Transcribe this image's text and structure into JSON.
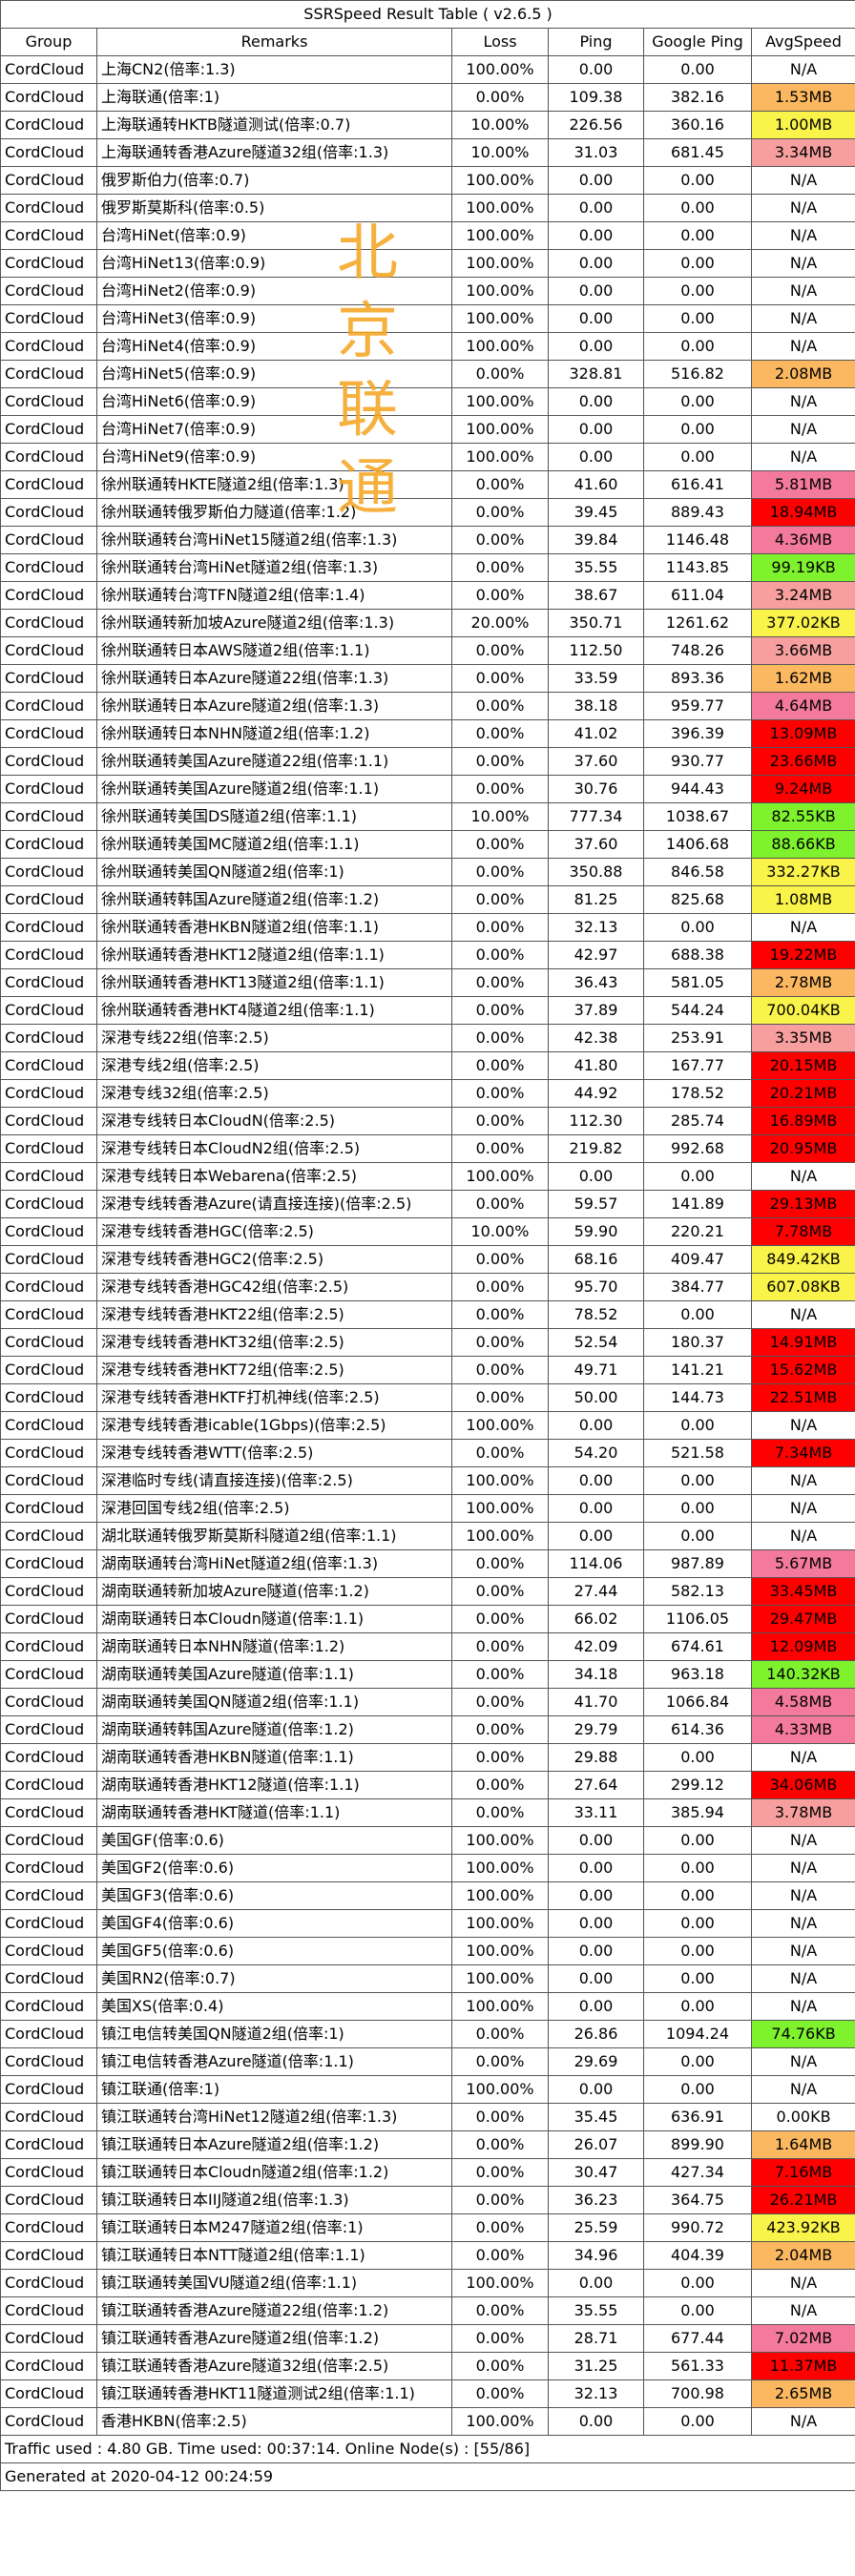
{
  "title": "SSRSpeed Result Table ( v2.6.5 )",
  "headers": [
    "Group",
    "Remarks",
    "Loss",
    "Ping",
    "Google Ping",
    "AvgSpeed"
  ],
  "watermark": [
    "北",
    "京",
    "联",
    "通"
  ],
  "speed_colors": {
    "red": "#ff0000",
    "pink": "#f47a9c",
    "salmon": "#f79f9f",
    "orange": "#fbb860",
    "yellow": "#f9f34a",
    "lime": "#7ef22c",
    "none": ""
  },
  "rows": [
    {
      "group": "CordCloud",
      "remark": "上海CN2(倍率:1.3)",
      "loss": "100.00%",
      "ping": "0.00",
      "gping": "0.00",
      "speed": "N/A",
      "color": "none"
    },
    {
      "group": "CordCloud",
      "remark": "上海联通(倍率:1)",
      "loss": "0.00%",
      "ping": "109.38",
      "gping": "382.16",
      "speed": "1.53MB",
      "color": "orange"
    },
    {
      "group": "CordCloud",
      "remark": "上海联通转HKTB隧道测试(倍率:0.7)",
      "loss": "10.00%",
      "ping": "226.56",
      "gping": "360.16",
      "speed": "1.00MB",
      "color": "yellow"
    },
    {
      "group": "CordCloud",
      "remark": "上海联通转香港Azure隧道32组(倍率:1.3)",
      "loss": "10.00%",
      "ping": "31.03",
      "gping": "681.45",
      "speed": "3.34MB",
      "color": "salmon"
    },
    {
      "group": "CordCloud",
      "remark": "俄罗斯伯力(倍率:0.7)",
      "loss": "100.00%",
      "ping": "0.00",
      "gping": "0.00",
      "speed": "N/A",
      "color": "none"
    },
    {
      "group": "CordCloud",
      "remark": "俄罗斯莫斯科(倍率:0.5)",
      "loss": "100.00%",
      "ping": "0.00",
      "gping": "0.00",
      "speed": "N/A",
      "color": "none"
    },
    {
      "group": "CordCloud",
      "remark": "台湾HiNet(倍率:0.9)",
      "loss": "100.00%",
      "ping": "0.00",
      "gping": "0.00",
      "speed": "N/A",
      "color": "none"
    },
    {
      "group": "CordCloud",
      "remark": "台湾HiNet13(倍率:0.9)",
      "loss": "100.00%",
      "ping": "0.00",
      "gping": "0.00",
      "speed": "N/A",
      "color": "none"
    },
    {
      "group": "CordCloud",
      "remark": "台湾HiNet2(倍率:0.9)",
      "loss": "100.00%",
      "ping": "0.00",
      "gping": "0.00",
      "speed": "N/A",
      "color": "none"
    },
    {
      "group": "CordCloud",
      "remark": "台湾HiNet3(倍率:0.9)",
      "loss": "100.00%",
      "ping": "0.00",
      "gping": "0.00",
      "speed": "N/A",
      "color": "none"
    },
    {
      "group": "CordCloud",
      "remark": "台湾HiNet4(倍率:0.9)",
      "loss": "100.00%",
      "ping": "0.00",
      "gping": "0.00",
      "speed": "N/A",
      "color": "none"
    },
    {
      "group": "CordCloud",
      "remark": "台湾HiNet5(倍率:0.9)",
      "loss": "0.00%",
      "ping": "328.81",
      "gping": "516.82",
      "speed": "2.08MB",
      "color": "orange"
    },
    {
      "group": "CordCloud",
      "remark": "台湾HiNet6(倍率:0.9)",
      "loss": "100.00%",
      "ping": "0.00",
      "gping": "0.00",
      "speed": "N/A",
      "color": "none"
    },
    {
      "group": "CordCloud",
      "remark": "台湾HiNet7(倍率:0.9)",
      "loss": "100.00%",
      "ping": "0.00",
      "gping": "0.00",
      "speed": "N/A",
      "color": "none"
    },
    {
      "group": "CordCloud",
      "remark": "台湾HiNet9(倍率:0.9)",
      "loss": "100.00%",
      "ping": "0.00",
      "gping": "0.00",
      "speed": "N/A",
      "color": "none"
    },
    {
      "group": "CordCloud",
      "remark": "徐州联通转HKTE隧道2组(倍率:1.3)",
      "loss": "0.00%",
      "ping": "41.60",
      "gping": "616.41",
      "speed": "5.81MB",
      "color": "pink"
    },
    {
      "group": "CordCloud",
      "remark": "徐州联通转俄罗斯伯力隧道(倍率:1.2)",
      "loss": "0.00%",
      "ping": "39.45",
      "gping": "889.43",
      "speed": "18.94MB",
      "color": "red"
    },
    {
      "group": "CordCloud",
      "remark": "徐州联通转台湾HiNet15隧道2组(倍率:1.3)",
      "loss": "0.00%",
      "ping": "39.84",
      "gping": "1146.48",
      "speed": "4.36MB",
      "color": "pink"
    },
    {
      "group": "CordCloud",
      "remark": "徐州联通转台湾HiNet隧道2组(倍率:1.3)",
      "loss": "0.00%",
      "ping": "35.55",
      "gping": "1143.85",
      "speed": "99.19KB",
      "color": "lime"
    },
    {
      "group": "CordCloud",
      "remark": "徐州联通转台湾TFN隧道2组(倍率:1.4)",
      "loss": "0.00%",
      "ping": "38.67",
      "gping": "611.04",
      "speed": "3.24MB",
      "color": "salmon"
    },
    {
      "group": "CordCloud",
      "remark": "徐州联通转新加坡Azure隧道2组(倍率:1.3)",
      "loss": "20.00%",
      "ping": "350.71",
      "gping": "1261.62",
      "speed": "377.02KB",
      "color": "yellow"
    },
    {
      "group": "CordCloud",
      "remark": "徐州联通转日本AWS隧道2组(倍率:1.1)",
      "loss": "0.00%",
      "ping": "112.50",
      "gping": "748.26",
      "speed": "3.66MB",
      "color": "salmon"
    },
    {
      "group": "CordCloud",
      "remark": "徐州联通转日本Azure隧道22组(倍率:1.3)",
      "loss": "0.00%",
      "ping": "33.59",
      "gping": "893.36",
      "speed": "1.62MB",
      "color": "orange"
    },
    {
      "group": "CordCloud",
      "remark": "徐州联通转日本Azure隧道2组(倍率:1.3)",
      "loss": "0.00%",
      "ping": "38.18",
      "gping": "959.77",
      "speed": "4.64MB",
      "color": "pink"
    },
    {
      "group": "CordCloud",
      "remark": "徐州联通转日本NHN隧道2组(倍率:1.2)",
      "loss": "0.00%",
      "ping": "41.02",
      "gping": "396.39",
      "speed": "13.09MB",
      "color": "red"
    },
    {
      "group": "CordCloud",
      "remark": "徐州联通转美国Azure隧道22组(倍率:1.1)",
      "loss": "0.00%",
      "ping": "37.60",
      "gping": "930.77",
      "speed": "23.66MB",
      "color": "red"
    },
    {
      "group": "CordCloud",
      "remark": "徐州联通转美国Azure隧道2组(倍率:1.1)",
      "loss": "0.00%",
      "ping": "30.76",
      "gping": "944.43",
      "speed": "9.24MB",
      "color": "red"
    },
    {
      "group": "CordCloud",
      "remark": "徐州联通转美国DS隧道2组(倍率:1.1)",
      "loss": "10.00%",
      "ping": "777.34",
      "gping": "1038.67",
      "speed": "82.55KB",
      "color": "lime"
    },
    {
      "group": "CordCloud",
      "remark": "徐州联通转美国MC隧道2组(倍率:1.1)",
      "loss": "0.00%",
      "ping": "37.60",
      "gping": "1406.68",
      "speed": "88.66KB",
      "color": "lime"
    },
    {
      "group": "CordCloud",
      "remark": "徐州联通转美国QN隧道2组(倍率:1)",
      "loss": "0.00%",
      "ping": "350.88",
      "gping": "846.58",
      "speed": "332.27KB",
      "color": "yellow"
    },
    {
      "group": "CordCloud",
      "remark": "徐州联通转韩国Azure隧道2组(倍率:1.2)",
      "loss": "0.00%",
      "ping": "81.25",
      "gping": "825.68",
      "speed": "1.08MB",
      "color": "yellow"
    },
    {
      "group": "CordCloud",
      "remark": "徐州联通转香港HKBN隧道2组(倍率:1.1)",
      "loss": "0.00%",
      "ping": "32.13",
      "gping": "0.00",
      "speed": "N/A",
      "color": "none"
    },
    {
      "group": "CordCloud",
      "remark": "徐州联通转香港HKT12隧道2组(倍率:1.1)",
      "loss": "0.00%",
      "ping": "42.97",
      "gping": "688.38",
      "speed": "19.22MB",
      "color": "red"
    },
    {
      "group": "CordCloud",
      "remark": "徐州联通转香港HKT13隧道2组(倍率:1.1)",
      "loss": "0.00%",
      "ping": "36.43",
      "gping": "581.05",
      "speed": "2.78MB",
      "color": "orange"
    },
    {
      "group": "CordCloud",
      "remark": "徐州联通转香港HKT4隧道2组(倍率:1.1)",
      "loss": "0.00%",
      "ping": "37.89",
      "gping": "544.24",
      "speed": "700.04KB",
      "color": "yellow"
    },
    {
      "group": "CordCloud",
      "remark": "深港专线22组(倍率:2.5)",
      "loss": "0.00%",
      "ping": "42.38",
      "gping": "253.91",
      "speed": "3.35MB",
      "color": "salmon"
    },
    {
      "group": "CordCloud",
      "remark": "深港专线2组(倍率:2.5)",
      "loss": "0.00%",
      "ping": "41.80",
      "gping": "167.77",
      "speed": "20.15MB",
      "color": "red"
    },
    {
      "group": "CordCloud",
      "remark": "深港专线32组(倍率:2.5)",
      "loss": "0.00%",
      "ping": "44.92",
      "gping": "178.52",
      "speed": "20.21MB",
      "color": "red"
    },
    {
      "group": "CordCloud",
      "remark": "深港专线转日本CloudN(倍率:2.5)",
      "loss": "0.00%",
      "ping": "112.30",
      "gping": "285.74",
      "speed": "16.89MB",
      "color": "red"
    },
    {
      "group": "CordCloud",
      "remark": "深港专线转日本CloudN2组(倍率:2.5)",
      "loss": "0.00%",
      "ping": "219.82",
      "gping": "992.68",
      "speed": "20.95MB",
      "color": "red"
    },
    {
      "group": "CordCloud",
      "remark": "深港专线转日本Webarena(倍率:2.5)",
      "loss": "100.00%",
      "ping": "0.00",
      "gping": "0.00",
      "speed": "N/A",
      "color": "none"
    },
    {
      "group": "CordCloud",
      "remark": "深港专线转香港Azure(请直接连接)(倍率:2.5)",
      "loss": "0.00%",
      "ping": "59.57",
      "gping": "141.89",
      "speed": "29.13MB",
      "color": "red"
    },
    {
      "group": "CordCloud",
      "remark": "深港专线转香港HGC(倍率:2.5)",
      "loss": "10.00%",
      "ping": "59.90",
      "gping": "220.21",
      "speed": "7.78MB",
      "color": "red"
    },
    {
      "group": "CordCloud",
      "remark": "深港专线转香港HGC2(倍率:2.5)",
      "loss": "0.00%",
      "ping": "68.16",
      "gping": "409.47",
      "speed": "849.42KB",
      "color": "yellow"
    },
    {
      "group": "CordCloud",
      "remark": "深港专线转香港HGC42组(倍率:2.5)",
      "loss": "0.00%",
      "ping": "95.70",
      "gping": "384.77",
      "speed": "607.08KB",
      "color": "yellow"
    },
    {
      "group": "CordCloud",
      "remark": "深港专线转香港HKT22组(倍率:2.5)",
      "loss": "0.00%",
      "ping": "78.52",
      "gping": "0.00",
      "speed": "N/A",
      "color": "none"
    },
    {
      "group": "CordCloud",
      "remark": "深港专线转香港HKT32组(倍率:2.5)",
      "loss": "0.00%",
      "ping": "52.54",
      "gping": "180.37",
      "speed": "14.91MB",
      "color": "red"
    },
    {
      "group": "CordCloud",
      "remark": "深港专线转香港HKT72组(倍率:2.5)",
      "loss": "0.00%",
      "ping": "49.71",
      "gping": "141.21",
      "speed": "15.62MB",
      "color": "red"
    },
    {
      "group": "CordCloud",
      "remark": "深港专线转香港HKTF打机神线(倍率:2.5)",
      "loss": "0.00%",
      "ping": "50.00",
      "gping": "144.73",
      "speed": "22.51MB",
      "color": "red"
    },
    {
      "group": "CordCloud",
      "remark": "深港专线转香港icable(1Gbps)(倍率:2.5)",
      "loss": "100.00%",
      "ping": "0.00",
      "gping": "0.00",
      "speed": "N/A",
      "color": "none"
    },
    {
      "group": "CordCloud",
      "remark": "深港专线转香港WTT(倍率:2.5)",
      "loss": "0.00%",
      "ping": "54.20",
      "gping": "521.58",
      "speed": "7.34MB",
      "color": "red"
    },
    {
      "group": "CordCloud",
      "remark": "深港临时专线(请直接连接)(倍率:2.5)",
      "loss": "100.00%",
      "ping": "0.00",
      "gping": "0.00",
      "speed": "N/A",
      "color": "none"
    },
    {
      "group": "CordCloud",
      "remark": "深港回国专线2组(倍率:2.5)",
      "loss": "100.00%",
      "ping": "0.00",
      "gping": "0.00",
      "speed": "N/A",
      "color": "none"
    },
    {
      "group": "CordCloud",
      "remark": "湖北联通转俄罗斯莫斯科隧道2组(倍率:1.1)",
      "loss": "100.00%",
      "ping": "0.00",
      "gping": "0.00",
      "speed": "N/A",
      "color": "none"
    },
    {
      "group": "CordCloud",
      "remark": "湖南联通转台湾HiNet隧道2组(倍率:1.3)",
      "loss": "0.00%",
      "ping": "114.06",
      "gping": "987.89",
      "speed": "5.67MB",
      "color": "pink"
    },
    {
      "group": "CordCloud",
      "remark": "湖南联通转新加坡Azure隧道(倍率:1.2)",
      "loss": "0.00%",
      "ping": "27.44",
      "gping": "582.13",
      "speed": "33.45MB",
      "color": "red"
    },
    {
      "group": "CordCloud",
      "remark": "湖南联通转日本Cloudn隧道(倍率:1.1)",
      "loss": "0.00%",
      "ping": "66.02",
      "gping": "1106.05",
      "speed": "29.47MB",
      "color": "red"
    },
    {
      "group": "CordCloud",
      "remark": "湖南联通转日本NHN隧道(倍率:1.2)",
      "loss": "0.00%",
      "ping": "42.09",
      "gping": "674.61",
      "speed": "12.09MB",
      "color": "red"
    },
    {
      "group": "CordCloud",
      "remark": "湖南联通转美国Azure隧道(倍率:1.1)",
      "loss": "0.00%",
      "ping": "34.18",
      "gping": "963.18",
      "speed": "140.32KB",
      "color": "lime"
    },
    {
      "group": "CordCloud",
      "remark": "湖南联通转美国QN隧道2组(倍率:1.1)",
      "loss": "0.00%",
      "ping": "41.70",
      "gping": "1066.84",
      "speed": "4.58MB",
      "color": "pink"
    },
    {
      "group": "CordCloud",
      "remark": "湖南联通转韩国Azure隧道(倍率:1.2)",
      "loss": "0.00%",
      "ping": "29.79",
      "gping": "614.36",
      "speed": "4.33MB",
      "color": "pink"
    },
    {
      "group": "CordCloud",
      "remark": "湖南联通转香港HKBN隧道(倍率:1.1)",
      "loss": "0.00%",
      "ping": "29.88",
      "gping": "0.00",
      "speed": "N/A",
      "color": "none"
    },
    {
      "group": "CordCloud",
      "remark": "湖南联通转香港HKT12隧道(倍率:1.1)",
      "loss": "0.00%",
      "ping": "27.64",
      "gping": "299.12",
      "speed": "34.06MB",
      "color": "red"
    },
    {
      "group": "CordCloud",
      "remark": "湖南联通转香港HKT隧道(倍率:1.1)",
      "loss": "0.00%",
      "ping": "33.11",
      "gping": "385.94",
      "speed": "3.78MB",
      "color": "salmon"
    },
    {
      "group": "CordCloud",
      "remark": "美国GF(倍率:0.6)",
      "loss": "100.00%",
      "ping": "0.00",
      "gping": "0.00",
      "speed": "N/A",
      "color": "none"
    },
    {
      "group": "CordCloud",
      "remark": "美国GF2(倍率:0.6)",
      "loss": "100.00%",
      "ping": "0.00",
      "gping": "0.00",
      "speed": "N/A",
      "color": "none"
    },
    {
      "group": "CordCloud",
      "remark": "美国GF3(倍率:0.6)",
      "loss": "100.00%",
      "ping": "0.00",
      "gping": "0.00",
      "speed": "N/A",
      "color": "none"
    },
    {
      "group": "CordCloud",
      "remark": "美国GF4(倍率:0.6)",
      "loss": "100.00%",
      "ping": "0.00",
      "gping": "0.00",
      "speed": "N/A",
      "color": "none"
    },
    {
      "group": "CordCloud",
      "remark": "美国GF5(倍率:0.6)",
      "loss": "100.00%",
      "ping": "0.00",
      "gping": "0.00",
      "speed": "N/A",
      "color": "none"
    },
    {
      "group": "CordCloud",
      "remark": "美国RN2(倍率:0.7)",
      "loss": "100.00%",
      "ping": "0.00",
      "gping": "0.00",
      "speed": "N/A",
      "color": "none"
    },
    {
      "group": "CordCloud",
      "remark": "美国XS(倍率:0.4)",
      "loss": "100.00%",
      "ping": "0.00",
      "gping": "0.00",
      "speed": "N/A",
      "color": "none"
    },
    {
      "group": "CordCloud",
      "remark": "镇江电信转美国QN隧道2组(倍率:1)",
      "loss": "0.00%",
      "ping": "26.86",
      "gping": "1094.24",
      "speed": "74.76KB",
      "color": "lime"
    },
    {
      "group": "CordCloud",
      "remark": "镇江电信转香港Azure隧道(倍率:1.1)",
      "loss": "0.00%",
      "ping": "29.69",
      "gping": "0.00",
      "speed": "N/A",
      "color": "none"
    },
    {
      "group": "CordCloud",
      "remark": "镇江联通(倍率:1)",
      "loss": "100.00%",
      "ping": "0.00",
      "gping": "0.00",
      "speed": "N/A",
      "color": "none"
    },
    {
      "group": "CordCloud",
      "remark": "镇江联通转台湾HiNet12隧道2组(倍率:1.3)",
      "loss": "0.00%",
      "ping": "35.45",
      "gping": "636.91",
      "speed": "0.00KB",
      "color": "none"
    },
    {
      "group": "CordCloud",
      "remark": "镇江联通转日本Azure隧道2组(倍率:1.2)",
      "loss": "0.00%",
      "ping": "26.07",
      "gping": "899.90",
      "speed": "1.64MB",
      "color": "orange"
    },
    {
      "group": "CordCloud",
      "remark": "镇江联通转日本Cloudn隧道2组(倍率:1.2)",
      "loss": "0.00%",
      "ping": "30.47",
      "gping": "427.34",
      "speed": "7.16MB",
      "color": "red"
    },
    {
      "group": "CordCloud",
      "remark": "镇江联通转日本IIJ隧道2组(倍率:1.3)",
      "loss": "0.00%",
      "ping": "36.23",
      "gping": "364.75",
      "speed": "26.21MB",
      "color": "red"
    },
    {
      "group": "CordCloud",
      "remark": "镇江联通转日本M247隧道2组(倍率:1)",
      "loss": "0.00%",
      "ping": "25.59",
      "gping": "990.72",
      "speed": "423.92KB",
      "color": "yellow"
    },
    {
      "group": "CordCloud",
      "remark": "镇江联通转日本NTT隧道2组(倍率:1.1)",
      "loss": "0.00%",
      "ping": "34.96",
      "gping": "404.39",
      "speed": "2.04MB",
      "color": "orange"
    },
    {
      "group": "CordCloud",
      "remark": "镇江联通转美国VU隧道2组(倍率:1.1)",
      "loss": "100.00%",
      "ping": "0.00",
      "gping": "0.00",
      "speed": "N/A",
      "color": "none"
    },
    {
      "group": "CordCloud",
      "remark": "镇江联通转香港Azure隧道22组(倍率:1.2)",
      "loss": "0.00%",
      "ping": "35.55",
      "gping": "0.00",
      "speed": "N/A",
      "color": "none"
    },
    {
      "group": "CordCloud",
      "remark": "镇江联通转香港Azure隧道2组(倍率:1.2)",
      "loss": "0.00%",
      "ping": "28.71",
      "gping": "677.44",
      "speed": "7.02MB",
      "color": "pink"
    },
    {
      "group": "CordCloud",
      "remark": "镇江联通转香港Azure隧道32组(倍率:2.5)",
      "loss": "0.00%",
      "ping": "31.25",
      "gping": "561.33",
      "speed": "11.37MB",
      "color": "red"
    },
    {
      "group": "CordCloud",
      "remark": "镇江联通转香港HKT11隧道测试2组(倍率:1.1)",
      "loss": "0.00%",
      "ping": "32.13",
      "gping": "700.98",
      "speed": "2.65MB",
      "color": "orange"
    },
    {
      "group": "CordCloud",
      "remark": "香港HKBN(倍率:2.5)",
      "loss": "100.00%",
      "ping": "0.00",
      "gping": "0.00",
      "speed": "N/A",
      "color": "none"
    }
  ],
  "footer": {
    "traffic": "Traffic used : 4.80 GB. Time used: 00:37:14. Online Node(s) : [55/86]",
    "generated": "Generated at 2020-04-12 00:24:59"
  }
}
